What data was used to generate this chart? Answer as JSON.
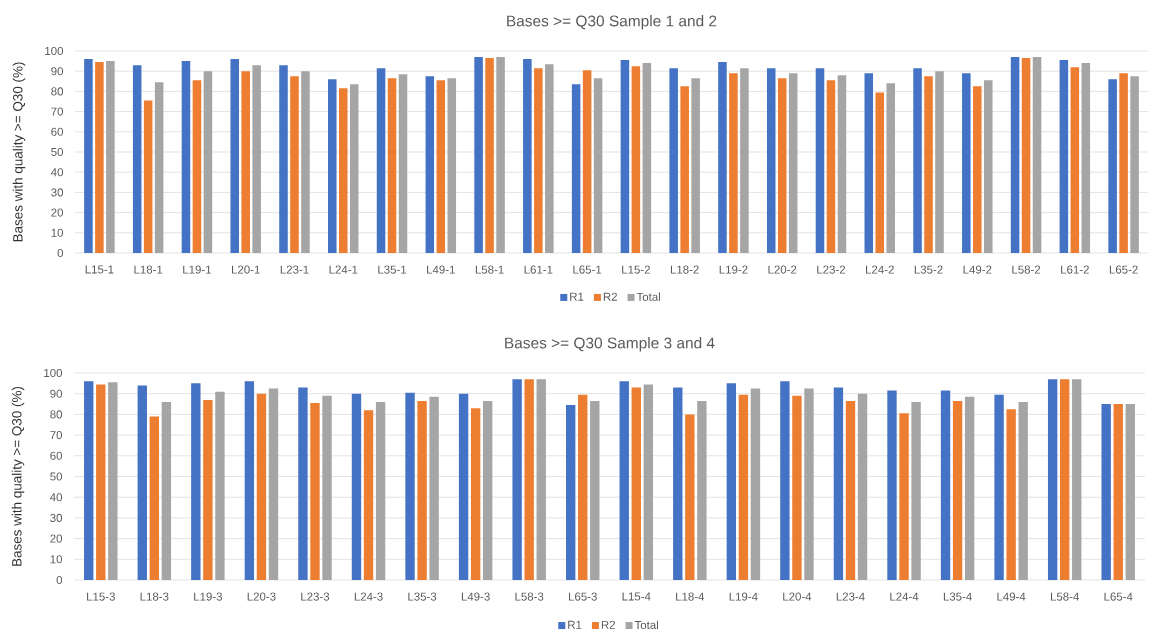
{
  "chart_data": [
    {
      "type": "bar",
      "title": "Bases >= Q30 Sample 1 and 2",
      "ylabel": "Bases with quality >= Q30 (%)",
      "categories": [
        "L15-1",
        "L18-1",
        "L19-1",
        "L20-1",
        "L23-1",
        "L24-1",
        "L35-1",
        "L49-1",
        "L58-1",
        "L61-1",
        "L65-1",
        "L15-2",
        "L18-2",
        "L19-2",
        "L20-2",
        "L23-2",
        "L24-2",
        "L35-2",
        "L49-2",
        "L58-2",
        "L61-2",
        "L65-2"
      ],
      "series": [
        {
          "name": "R1",
          "color": "#4472c4",
          "values": [
            96,
            93,
            95,
            96,
            93,
            86,
            91.5,
            87.5,
            97,
            96,
            83.5,
            95.5,
            91.5,
            94.5,
            91.5,
            91.5,
            89,
            91.5,
            89,
            97,
            95.5,
            86
          ]
        },
        {
          "name": "R2",
          "color": "#ed7d31",
          "values": [
            94.5,
            75.5,
            85.5,
            90,
            87.5,
            81.5,
            86.5,
            85.5,
            96.5,
            91.5,
            90.5,
            92.5,
            82.5,
            89,
            86.5,
            85.5,
            79.5,
            87.5,
            82.5,
            96.5,
            92,
            89
          ]
        },
        {
          "name": "Total",
          "color": "#a5a5a5",
          "values": [
            95,
            84.5,
            90,
            93,
            90,
            83.5,
            88.5,
            86.5,
            97,
            93.5,
            86.5,
            94,
            86.5,
            91.5,
            89,
            88,
            84,
            90,
            85.5,
            97,
            94,
            87.5
          ]
        }
      ],
      "ylim": [
        0,
        100
      ],
      "yticks": [
        0,
        10,
        20,
        30,
        40,
        50,
        60,
        70,
        80,
        90,
        100
      ],
      "grid": "y",
      "legend": "bottom"
    },
    {
      "type": "bar",
      "title": "Bases >= Q30 Sample 3 and 4",
      "ylabel": "Bases with quality >= Q30 (%)",
      "categories": [
        "L15-3",
        "L18-3",
        "L19-3",
        "L20-3",
        "L23-3",
        "L24-3",
        "L35-3",
        "L49-3",
        "L58-3",
        "L65-3",
        "L15-4",
        "L18-4",
        "L19-4",
        "L20-4",
        "L23-4",
        "L24-4",
        "L35-4",
        "L49-4",
        "L58-4",
        "L65-4"
      ],
      "series": [
        {
          "name": "R1",
          "color": "#4472c4",
          "values": [
            96,
            94,
            95,
            96,
            93,
            90,
            90.5,
            90,
            97,
            84.5,
            96,
            93,
            95,
            96,
            93,
            91.5,
            91.5,
            89.5,
            97,
            85
          ]
        },
        {
          "name": "R2",
          "color": "#ed7d31",
          "values": [
            94.5,
            79,
            87,
            90,
            85.5,
            82,
            86.5,
            83,
            97,
            89.5,
            93,
            80,
            89.5,
            89,
            86.5,
            80.5,
            86.5,
            82.5,
            97,
            85
          ]
        },
        {
          "name": "Total",
          "color": "#a5a5a5",
          "values": [
            95.5,
            86,
            91,
            92.5,
            89,
            86,
            88.5,
            86.5,
            97,
            86.5,
            94.5,
            86.5,
            92.5,
            92.5,
            90,
            86,
            88.5,
            86,
            97,
            85
          ]
        }
      ],
      "ylim": [
        0,
        100
      ],
      "yticks": [
        0,
        10,
        20,
        30,
        40,
        50,
        60,
        70,
        80,
        90,
        100
      ],
      "grid": "y",
      "legend": "bottom"
    }
  ]
}
